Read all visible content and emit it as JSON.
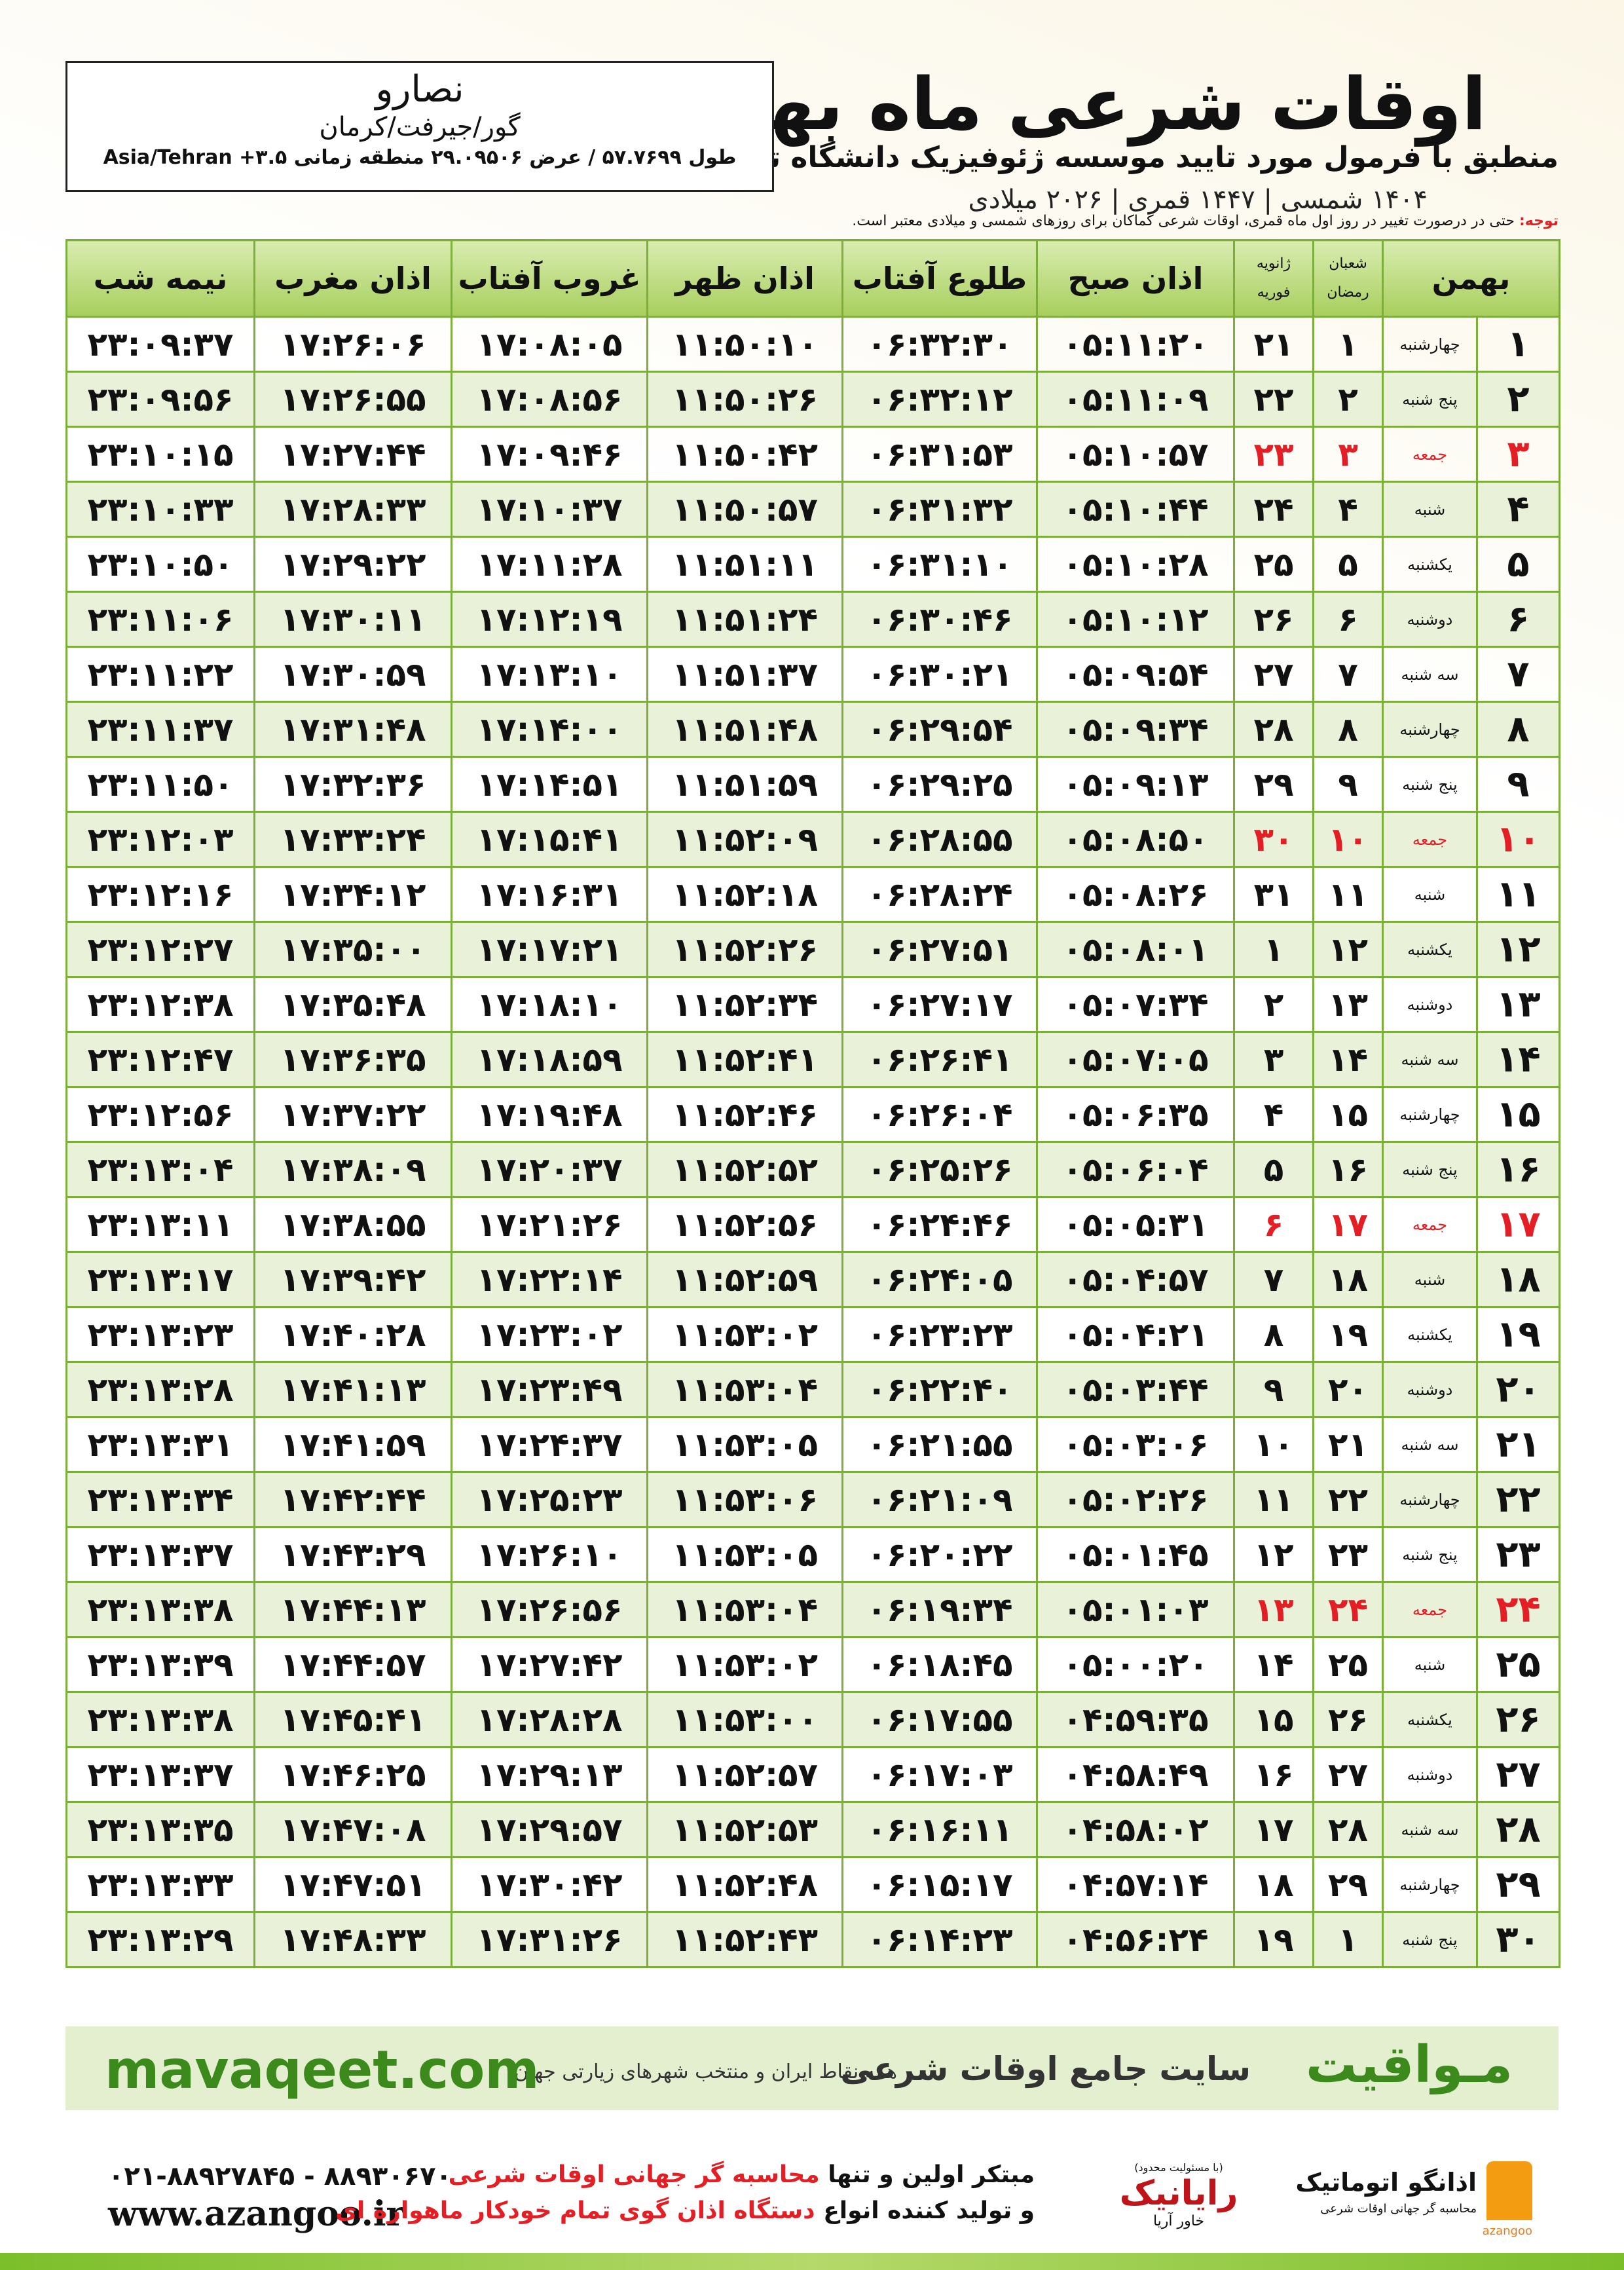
{
  "header": {
    "title": "اوقات شرعی ماه بهمن",
    "subtitle": "منطبق با فرمول مورد تایید موسسه ژئوفیزیک دانشگاه تهران",
    "date_line": "۱۴۰۴ شمسی | ۱۴۴۷ قمری | ۲۰۲۶ میلادی"
  },
  "location": {
    "city": "نصارو",
    "region": "گور/جیرفت/کرمان",
    "coords": "طول ۵۷.۷۶۹۹ / عرض ۲۹.۰۹۵۰۶ منطقه زمانی ۳.۵+ Asia/Tehran"
  },
  "note": {
    "label": "توجه:",
    "text": "حتی در درصورت تغییر در روز اول ماه قمری، اوقات شرعی کماکان برای روزهای شمسی و میلادی معتبر است."
  },
  "table": {
    "holiday_color": "#e31e24",
    "header": [
      "بهمن",
      [
        "شعبان",
        "رمضان"
      ],
      [
        "ژانویه",
        "فوریه"
      ],
      "اذان صبح",
      "طلوع آفتاب",
      "اذان ظهر",
      "غروب آفتاب",
      "اذان مغرب",
      "نیمه شب"
    ],
    "rows": [
      {
        "cells": [
          "۱",
          "چهارشنبه",
          "۱",
          "۲۱",
          "۰۵:۱۱:۲۰",
          "۰۶:۳۲:۳۰",
          "۱۱:۵۰:۱۰",
          "۱۷:۰۸:۰۵",
          "۱۷:۲۶:۰۶",
          "۲۳:۰۹:۳۷"
        ]
      },
      {
        "cells": [
          "۲",
          "پنج شنبه",
          "۲",
          "۲۲",
          "۰۵:۱۱:۰۹",
          "۰۶:۳۲:۱۲",
          "۱۱:۵۰:۲۶",
          "۱۷:۰۸:۵۶",
          "۱۷:۲۶:۵۵",
          "۲۳:۰۹:۵۶"
        ]
      },
      {
        "cells": [
          "۳",
          "جمعه",
          "۳",
          "۲۳",
          "۰۵:۱۰:۵۷",
          "۰۶:۳۱:۵۳",
          "۱۱:۵۰:۴۲",
          "۱۷:۰۹:۴۶",
          "۱۷:۲۷:۴۴",
          "۲۳:۱۰:۱۵"
        ],
        "holiday": true
      },
      {
        "cells": [
          "۴",
          "شنبه",
          "۴",
          "۲۴",
          "۰۵:۱۰:۴۴",
          "۰۶:۳۱:۳۲",
          "۱۱:۵۰:۵۷",
          "۱۷:۱۰:۳۷",
          "۱۷:۲۸:۳۳",
          "۲۳:۱۰:۳۳"
        ]
      },
      {
        "cells": [
          "۵",
          "یکشنبه",
          "۵",
          "۲۵",
          "۰۵:۱۰:۲۸",
          "۰۶:۳۱:۱۰",
          "۱۱:۵۱:۱۱",
          "۱۷:۱۱:۲۸",
          "۱۷:۲۹:۲۲",
          "۲۳:۱۰:۵۰"
        ]
      },
      {
        "cells": [
          "۶",
          "دوشنبه",
          "۶",
          "۲۶",
          "۰۵:۱۰:۱۲",
          "۰۶:۳۰:۴۶",
          "۱۱:۵۱:۲۴",
          "۱۷:۱۲:۱۹",
          "۱۷:۳۰:۱۱",
          "۲۳:۱۱:۰۶"
        ]
      },
      {
        "cells": [
          "۷",
          "سه شنبه",
          "۷",
          "۲۷",
          "۰۵:۰۹:۵۴",
          "۰۶:۳۰:۲۱",
          "۱۱:۵۱:۳۷",
          "۱۷:۱۳:۱۰",
          "۱۷:۳۰:۵۹",
          "۲۳:۱۱:۲۲"
        ]
      },
      {
        "cells": [
          "۸",
          "چهارشنبه",
          "۸",
          "۲۸",
          "۰۵:۰۹:۳۴",
          "۰۶:۲۹:۵۴",
          "۱۱:۵۱:۴۸",
          "۱۷:۱۴:۰۰",
          "۱۷:۳۱:۴۸",
          "۲۳:۱۱:۳۷"
        ]
      },
      {
        "cells": [
          "۹",
          "پنج شنبه",
          "۹",
          "۲۹",
          "۰۵:۰۹:۱۳",
          "۰۶:۲۹:۲۵",
          "۱۱:۵۱:۵۹",
          "۱۷:۱۴:۵۱",
          "۱۷:۳۲:۳۶",
          "۲۳:۱۱:۵۰"
        ]
      },
      {
        "cells": [
          "۱۰",
          "جمعه",
          "۱۰",
          "۳۰",
          "۰۵:۰۸:۵۰",
          "۰۶:۲۸:۵۵",
          "۱۱:۵۲:۰۹",
          "۱۷:۱۵:۴۱",
          "۱۷:۳۳:۲۴",
          "۲۳:۱۲:۰۳"
        ],
        "holiday": true
      },
      {
        "cells": [
          "۱۱",
          "شنبه",
          "۱۱",
          "۳۱",
          "۰۵:۰۸:۲۶",
          "۰۶:۲۸:۲۴",
          "۱۱:۵۲:۱۸",
          "۱۷:۱۶:۳۱",
          "۱۷:۳۴:۱۲",
          "۲۳:۱۲:۱۶"
        ]
      },
      {
        "cells": [
          "۱۲",
          "یکشنبه",
          "۱۲",
          "۱",
          "۰۵:۰۸:۰۱",
          "۰۶:۲۷:۵۱",
          "۱۱:۵۲:۲۶",
          "۱۷:۱۷:۲۱",
          "۱۷:۳۵:۰۰",
          "۲۳:۱۲:۲۷"
        ]
      },
      {
        "cells": [
          "۱۳",
          "دوشنبه",
          "۱۳",
          "۲",
          "۰۵:۰۷:۳۴",
          "۰۶:۲۷:۱۷",
          "۱۱:۵۲:۳۴",
          "۱۷:۱۸:۱۰",
          "۱۷:۳۵:۴۸",
          "۲۳:۱۲:۳۸"
        ]
      },
      {
        "cells": [
          "۱۴",
          "سه شنبه",
          "۱۴",
          "۳",
          "۰۵:۰۷:۰۵",
          "۰۶:۲۶:۴۱",
          "۱۱:۵۲:۴۱",
          "۱۷:۱۸:۵۹",
          "۱۷:۳۶:۳۵",
          "۲۳:۱۲:۴۷"
        ]
      },
      {
        "cells": [
          "۱۵",
          "چهارشنبه",
          "۱۵",
          "۴",
          "۰۵:۰۶:۳۵",
          "۰۶:۲۶:۰۴",
          "۱۱:۵۲:۴۶",
          "۱۷:۱۹:۴۸",
          "۱۷:۳۷:۲۲",
          "۲۳:۱۲:۵۶"
        ]
      },
      {
        "cells": [
          "۱۶",
          "پنج شنبه",
          "۱۶",
          "۵",
          "۰۵:۰۶:۰۴",
          "۰۶:۲۵:۲۶",
          "۱۱:۵۲:۵۲",
          "۱۷:۲۰:۳۷",
          "۱۷:۳۸:۰۹",
          "۲۳:۱۳:۰۴"
        ]
      },
      {
        "cells": [
          "۱۷",
          "جمعه",
          "۱۷",
          "۶",
          "۰۵:۰۵:۳۱",
          "۰۶:۲۴:۴۶",
          "۱۱:۵۲:۵۶",
          "۱۷:۲۱:۲۶",
          "۱۷:۳۸:۵۵",
          "۲۳:۱۳:۱۱"
        ],
        "holiday": true
      },
      {
        "cells": [
          "۱۸",
          "شنبه",
          "۱۸",
          "۷",
          "۰۵:۰۴:۵۷",
          "۰۶:۲۴:۰۵",
          "۱۱:۵۲:۵۹",
          "۱۷:۲۲:۱۴",
          "۱۷:۳۹:۴۲",
          "۲۳:۱۳:۱۷"
        ]
      },
      {
        "cells": [
          "۱۹",
          "یکشنبه",
          "۱۹",
          "۸",
          "۰۵:۰۴:۲۱",
          "۰۶:۲۳:۲۳",
          "۱۱:۵۳:۰۲",
          "۱۷:۲۳:۰۲",
          "۱۷:۴۰:۲۸",
          "۲۳:۱۳:۲۳"
        ]
      },
      {
        "cells": [
          "۲۰",
          "دوشنبه",
          "۲۰",
          "۹",
          "۰۵:۰۳:۴۴",
          "۰۶:۲۲:۴۰",
          "۱۱:۵۳:۰۴",
          "۱۷:۲۳:۴۹",
          "۱۷:۴۱:۱۳",
          "۲۳:۱۳:۲۸"
        ]
      },
      {
        "cells": [
          "۲۱",
          "سه شنبه",
          "۲۱",
          "۱۰",
          "۰۵:۰۳:۰۶",
          "۰۶:۲۱:۵۵",
          "۱۱:۵۳:۰۵",
          "۱۷:۲۴:۳۷",
          "۱۷:۴۱:۵۹",
          "۲۳:۱۳:۳۱"
        ]
      },
      {
        "cells": [
          "۲۲",
          "چهارشنبه",
          "۲۲",
          "۱۱",
          "۰۵:۰۲:۲۶",
          "۰۶:۲۱:۰۹",
          "۱۱:۵۳:۰۶",
          "۱۷:۲۵:۲۳",
          "۱۷:۴۲:۴۴",
          "۲۳:۱۳:۳۴"
        ]
      },
      {
        "cells": [
          "۲۳",
          "پنج شنبه",
          "۲۳",
          "۱۲",
          "۰۵:۰۱:۴۵",
          "۰۶:۲۰:۲۲",
          "۱۱:۵۳:۰۵",
          "۱۷:۲۶:۱۰",
          "۱۷:۴۳:۲۹",
          "۲۳:۱۳:۳۷"
        ]
      },
      {
        "cells": [
          "۲۴",
          "جمعه",
          "۲۴",
          "۱۳",
          "۰۵:۰۱:۰۳",
          "۰۶:۱۹:۳۴",
          "۱۱:۵۳:۰۴",
          "۱۷:۲۶:۵۶",
          "۱۷:۴۴:۱۳",
          "۲۳:۱۳:۳۸"
        ],
        "holiday": true
      },
      {
        "cells": [
          "۲۵",
          "شنبه",
          "۲۵",
          "۱۴",
          "۰۵:۰۰:۲۰",
          "۰۶:۱۸:۴۵",
          "۱۱:۵۳:۰۲",
          "۱۷:۲۷:۴۲",
          "۱۷:۴۴:۵۷",
          "۲۳:۱۳:۳۹"
        ]
      },
      {
        "cells": [
          "۲۶",
          "یکشنبه",
          "۲۶",
          "۱۵",
          "۰۴:۵۹:۳۵",
          "۰۶:۱۷:۵۵",
          "۱۱:۵۳:۰۰",
          "۱۷:۲۸:۲۸",
          "۱۷:۴۵:۴۱",
          "۲۳:۱۳:۳۸"
        ]
      },
      {
        "cells": [
          "۲۷",
          "دوشنبه",
          "۲۷",
          "۱۶",
          "۰۴:۵۸:۴۹",
          "۰۶:۱۷:۰۳",
          "۱۱:۵۲:۵۷",
          "۱۷:۲۹:۱۳",
          "۱۷:۴۶:۲۵",
          "۲۳:۱۳:۳۷"
        ]
      },
      {
        "cells": [
          "۲۸",
          "سه شنبه",
          "۲۸",
          "۱۷",
          "۰۴:۵۸:۰۲",
          "۰۶:۱۶:۱۱",
          "۱۱:۵۲:۵۳",
          "۱۷:۲۹:۵۷",
          "۱۷:۴۷:۰۸",
          "۲۳:۱۳:۳۵"
        ]
      },
      {
        "cells": [
          "۲۹",
          "چهارشنبه",
          "۲۹",
          "۱۸",
          "۰۴:۵۷:۱۴",
          "۰۶:۱۵:۱۷",
          "۱۱:۵۲:۴۸",
          "۱۷:۳۰:۴۲",
          "۱۷:۴۷:۵۱",
          "۲۳:۱۳:۳۳"
        ]
      },
      {
        "cells": [
          "۳۰",
          "پنج شنبه",
          "۱",
          "۱۹",
          "۰۴:۵۶:۲۴",
          "۰۶:۱۴:۲۳",
          "۱۱:۵۲:۴۳",
          "۱۷:۳۱:۲۶",
          "۱۷:۴۸:۳۳",
          "۲۳:۱۳:۲۹"
        ]
      }
    ]
  },
  "banner": {
    "brand": "مـواقیت",
    "tagline": "سایت جامع اوقات شرعی",
    "subline": "همه نقاط ایران و منتخب شهرهای زیارتی جهان",
    "url": "mavaqeet.com"
  },
  "footer": {
    "phone": "۰۲۱-۸۸۹۲۷۸۴۵ - ۸۸۹۳۰۶۷۰",
    "website": "www.azangoo.ir",
    "line1": {
      "text": "مبتکر اولین و تنها",
      "highlight": "محاسبه گر جهانی اوقات شرعی"
    },
    "line2": {
      "text": "و تولید کننده انواع",
      "highlight": "دستگاه اذان گوی تمام خودکار ماهواره ای"
    },
    "logo1": {
      "note": "(با مسئولیت محدود)",
      "name": "رایانیک",
      "sub": "خاور آریا"
    },
    "logo2": {
      "name": "اذانگو اتوماتیک",
      "sub": "محاسبه گر جهانی اوقات شرعی",
      "latin": "azangoo"
    }
  }
}
